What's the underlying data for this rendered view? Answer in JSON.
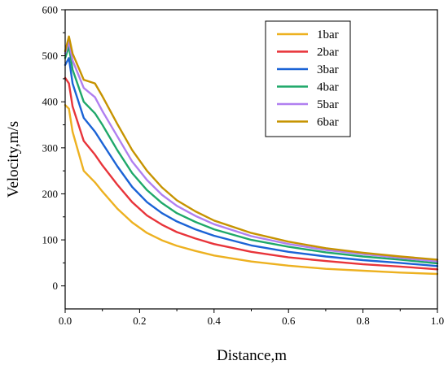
{
  "chart_data": {
    "type": "line",
    "title": "",
    "xlabel": "Distance,m",
    "ylabel": "Velocity,m/s",
    "xlim": [
      0,
      1.0
    ],
    "ylim": [
      -50,
      600
    ],
    "x_ticks": [
      0.0,
      0.2,
      0.4,
      0.6,
      0.8,
      1.0
    ],
    "x_tick_labels": [
      "0.0",
      "0.2",
      "0.4",
      "0.6",
      "0.8",
      "1.0"
    ],
    "y_ticks": [
      0,
      100,
      200,
      300,
      400,
      500,
      600
    ],
    "y_tick_labels": [
      "0",
      "100",
      "200",
      "300",
      "400",
      "500",
      "600"
    ],
    "grid": false,
    "legend_position": "top-right",
    "x": [
      0,
      0.01,
      0.02,
      0.05,
      0.08,
      0.1,
      0.14,
      0.18,
      0.22,
      0.26,
      0.3,
      0.35,
      0.4,
      0.5,
      0.6,
      0.7,
      0.8,
      0.9,
      1.0
    ],
    "series": [
      {
        "name": "1bar",
        "color": "#EDB120",
        "values": [
          393,
          385,
          335,
          250,
          225,
          205,
          168,
          138,
          115,
          99,
          87,
          76,
          66,
          53,
          44,
          37,
          33,
          29,
          26
        ]
      },
      {
        "name": "2bar",
        "color": "#E8343A",
        "values": [
          452,
          440,
          390,
          315,
          285,
          262,
          220,
          182,
          153,
          133,
          117,
          103,
          91,
          74,
          62,
          54,
          47,
          42,
          36
        ]
      },
      {
        "name": "3bar",
        "color": "#1B63D6",
        "values": [
          480,
          495,
          440,
          365,
          335,
          310,
          260,
          215,
          182,
          158,
          140,
          123,
          109,
          88,
          74,
          64,
          56,
          50,
          43
        ]
      },
      {
        "name": "4bar",
        "color": "#1FA86A",
        "values": [
          495,
          520,
          470,
          400,
          375,
          350,
          295,
          245,
          208,
          180,
          158,
          139,
          123,
          100,
          85,
          73,
          64,
          57,
          49
        ]
      },
      {
        "name": "5bar",
        "color": "#B07FF0",
        "values": [
          505,
          530,
          490,
          430,
          410,
          380,
          325,
          270,
          230,
          198,
          174,
          152,
          134,
          108,
          91,
          78,
          69,
          61,
          53
        ]
      },
      {
        "name": "6bar",
        "color": "#C69300",
        "values": [
          510,
          542,
          505,
          448,
          440,
          412,
          352,
          295,
          250,
          214,
          186,
          162,
          142,
          115,
          96,
          82,
          72,
          64,
          57
        ]
      }
    ]
  }
}
